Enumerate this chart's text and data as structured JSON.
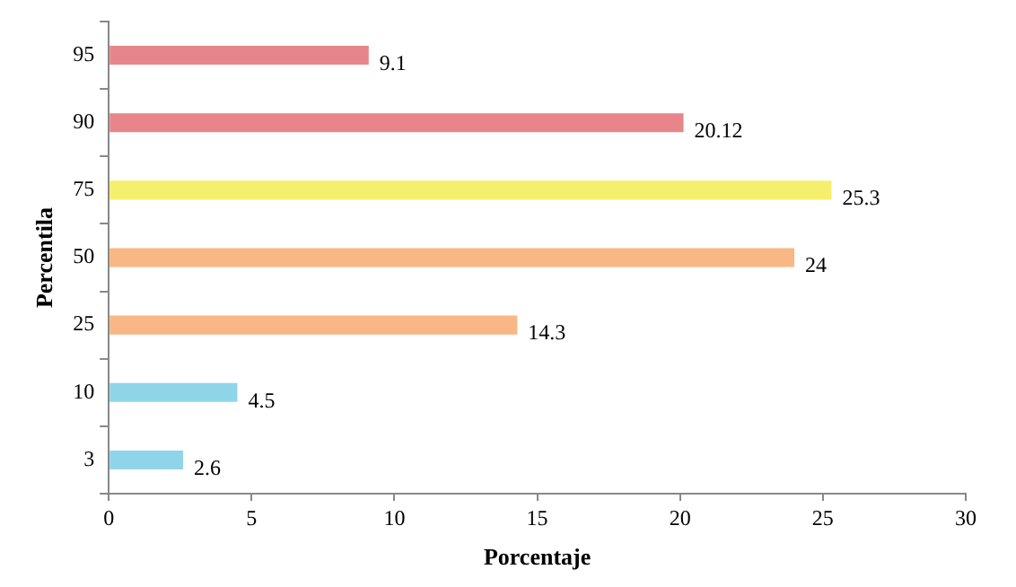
{
  "chart_data": {
    "type": "bar",
    "orientation": "horizontal",
    "xlabel": "Porcentaje",
    "ylabel": "Percentila",
    "categories": [
      "95",
      "90",
      "75",
      "50",
      "25",
      "10",
      "3"
    ],
    "values": [
      9.1,
      20.12,
      25.3,
      24,
      14.3,
      4.5,
      2.6
    ],
    "colors": [
      "#e8858a",
      "#e8858a",
      "#f5ef6e",
      "#f8b784",
      "#f8b784",
      "#8fd5ea",
      "#8fd5ea"
    ],
    "value_labels": [
      "9.1",
      "20.12",
      "25.3",
      "24",
      "14.3",
      "4.5",
      "2.6"
    ],
    "xlim": [
      0,
      30
    ],
    "xticks": [
      0,
      5,
      10,
      15,
      20,
      25,
      30
    ],
    "grid": false,
    "legend": false
  }
}
